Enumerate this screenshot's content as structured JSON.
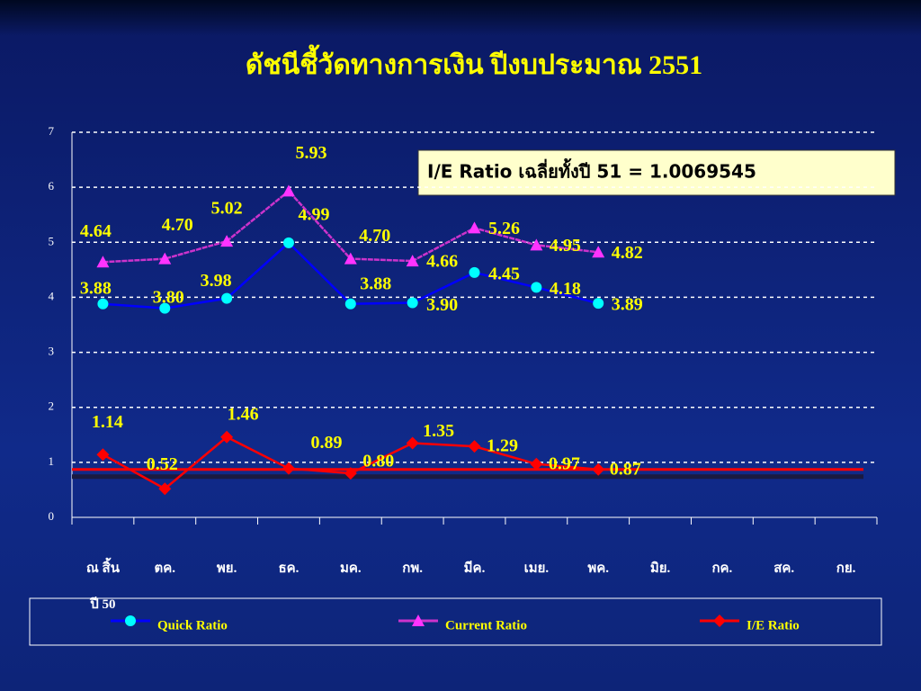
{
  "chart_data": {
    "type": "line",
    "title": "ดัชนีชี้วัดทางการเงิน ปีงบประมาณ 2551",
    "annotation": "I/E Ratio เฉลี่ยทั้งปี 51 = 1.0069545",
    "categories": [
      "ณ สิ้น\nปี 50",
      "ตค.",
      "พย.",
      "ธค.",
      "มค.",
      "กพ.",
      "มีค.",
      "เมย.",
      "พค.",
      "มิย.",
      "กค.",
      "สค.",
      "กย."
    ],
    "ylim": [
      0,
      7
    ],
    "yticks": [
      0,
      1,
      2,
      3,
      4,
      5,
      6,
      7
    ],
    "grid": true,
    "series": [
      {
        "name": "Quick Ratio",
        "color": "#0000ff",
        "marker_color": "#00ffff",
        "marker": "circle",
        "values": [
          3.88,
          3.8,
          3.98,
          4.99,
          3.88,
          3.9,
          4.45,
          4.18,
          3.89,
          null,
          null,
          null,
          null
        ],
        "value_labels": [
          "3.88",
          "3.80",
          "3.98",
          "4.99",
          "3.88",
          "3.90",
          "4.45",
          "4.18",
          "3.89",
          null,
          null,
          null,
          null
        ]
      },
      {
        "name": "Current Ratio",
        "color": "#cc33cc",
        "marker_color": "#ff33ff",
        "marker": "triangle",
        "values": [
          4.64,
          4.7,
          5.02,
          5.93,
          4.7,
          4.66,
          5.26,
          4.95,
          4.82,
          null,
          null,
          null,
          null
        ],
        "value_labels": [
          "4.64",
          "4.70",
          "5.02",
          "5.93",
          "4.70",
          "4.66",
          "5.26",
          "4.95",
          "4.82",
          null,
          null,
          null,
          null
        ]
      },
      {
        "name": "I/E Ratio",
        "color": "#ff0000",
        "marker_color": "#ff0000",
        "marker": "diamond",
        "values": [
          1.14,
          0.52,
          1.46,
          0.89,
          0.8,
          1.35,
          1.29,
          0.97,
          0.87,
          null,
          null,
          null,
          null
        ],
        "value_labels": [
          "1.14",
          "0.52",
          "1.46",
          "0.89",
          "0.80",
          "1.35",
          "1.29",
          "0.97",
          "0.87",
          null,
          null,
          null,
          null
        ]
      }
    ],
    "reference_lines": [
      {
        "value": 0.74,
        "color": "#1a1a40"
      },
      {
        "value": 0.87,
        "color": "#ff0000"
      }
    ]
  }
}
